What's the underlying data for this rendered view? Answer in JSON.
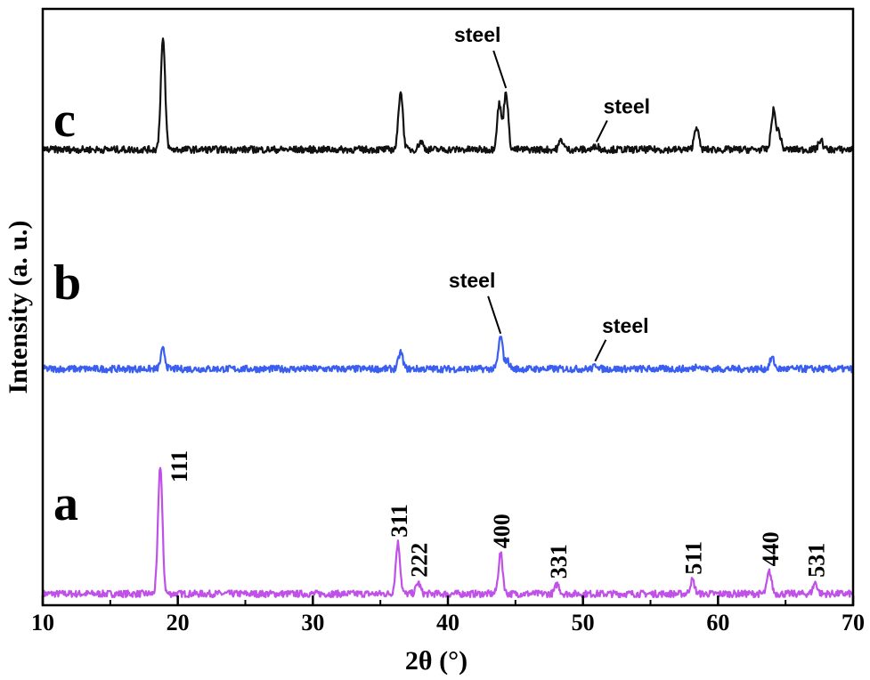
{
  "chart_data": {
    "type": "line",
    "xlabel": "2θ (°)",
    "ylabel": "Intensity (a. u.)",
    "xlim": [
      10,
      70
    ],
    "x_ticks": [
      "10",
      "20",
      "30",
      "40",
      "50",
      "60",
      "70"
    ],
    "grid": false,
    "series": [
      {
        "panel": "a",
        "color": "#c050e8",
        "baseline": 0.07,
        "peaks": [
          {
            "x": 18.7,
            "height": 0.93,
            "label": "111"
          },
          {
            "x": 36.3,
            "height": 0.37,
            "label": "311"
          },
          {
            "x": 37.8,
            "height": 0.08,
            "label": "222"
          },
          {
            "x": 43.9,
            "height": 0.29,
            "label": "400"
          },
          {
            "x": 48.1,
            "height": 0.07,
            "label": "331"
          },
          {
            "x": 58.1,
            "height": 0.1,
            "label": "511"
          },
          {
            "x": 63.8,
            "height": 0.16,
            "label": "440"
          },
          {
            "x": 67.2,
            "height": 0.08,
            "label": "531"
          }
        ]
      },
      {
        "panel": "b",
        "color": "#3a5ff0",
        "baseline": 1.7,
        "peaks": [
          {
            "x": 18.9,
            "height": 0.14
          },
          {
            "x": 36.5,
            "height": 0.12
          },
          {
            "x": 43.9,
            "height": 0.23
          },
          {
            "x": 44.4,
            "height": 0.06
          },
          {
            "x": 51.0,
            "height": 0.03
          },
          {
            "x": 58.5,
            "height": 0.03
          },
          {
            "x": 64.0,
            "height": 0.08
          }
        ],
        "annotations": [
          {
            "text": "steel",
            "x": 43.9
          },
          {
            "text": "steel",
            "x": 50.9
          }
        ]
      },
      {
        "panel": "c",
        "color": "#111111",
        "baseline": 3.29,
        "peaks": [
          {
            "x": 18.9,
            "height": 0.8
          },
          {
            "x": 36.5,
            "height": 0.43
          },
          {
            "x": 38.0,
            "height": 0.06
          },
          {
            "x": 43.8,
            "height": 0.33
          },
          {
            "x": 44.3,
            "height": 0.42
          },
          {
            "x": 48.4,
            "height": 0.07
          },
          {
            "x": 51.0,
            "height": 0.03
          },
          {
            "x": 58.4,
            "height": 0.17
          },
          {
            "x": 64.1,
            "height": 0.28
          },
          {
            "x": 64.5,
            "height": 0.12
          },
          {
            "x": 67.6,
            "height": 0.07
          }
        ],
        "annotations": [
          {
            "text": "steel",
            "x": 44.3
          },
          {
            "text": "steel",
            "x": 51.0
          }
        ]
      }
    ]
  }
}
